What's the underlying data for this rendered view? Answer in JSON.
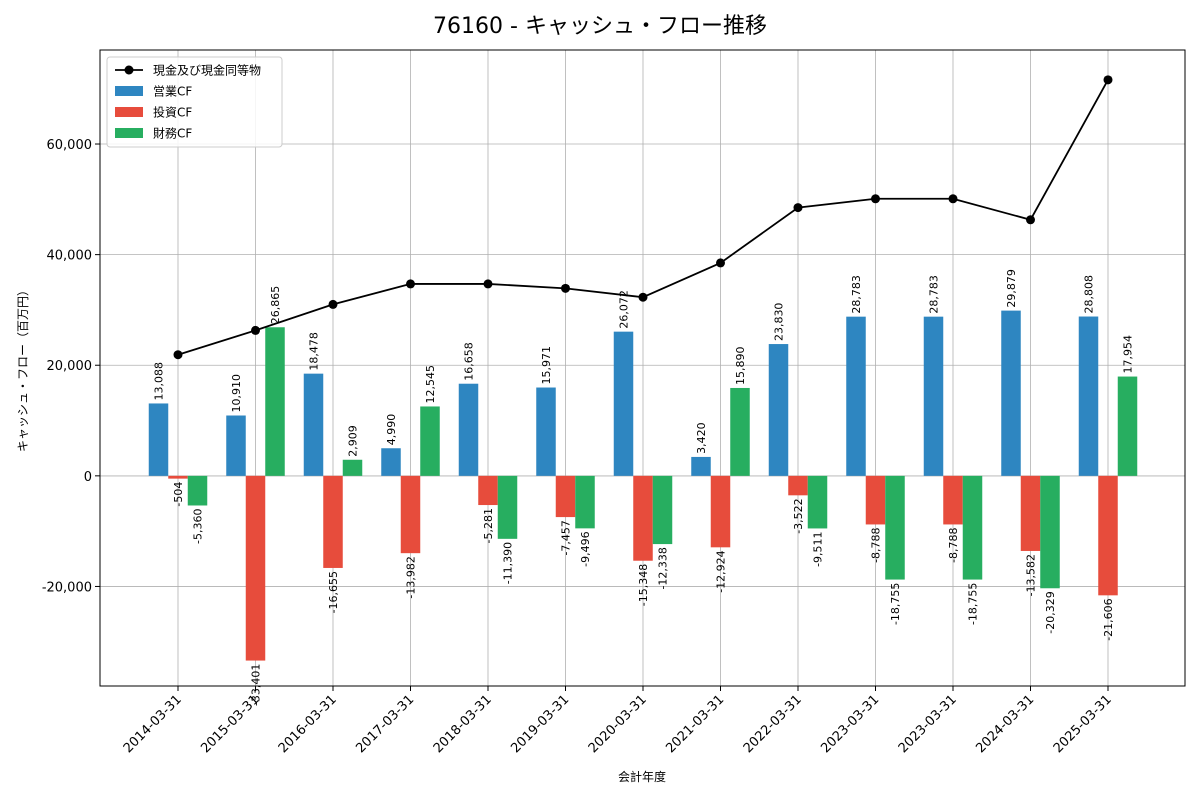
{
  "chart_data": {
    "type": "bar",
    "title": "76160 - キャッシュ・フロー推移",
    "xlabel": "会計年度",
    "ylabel": "キャッシュ・フロー（百万円）",
    "categories": [
      "2014-03-31",
      "2015-03-31",
      "2016-03-31",
      "2017-03-31",
      "2018-03-31",
      "2019-03-31",
      "2020-03-31",
      "2021-03-31",
      "2022-03-31",
      "2023-03-31",
      "2023-03-31",
      "2024-03-31",
      "2025-03-31"
    ],
    "ylim": [
      -38000,
      77000
    ],
    "yticks": [
      -20000,
      0,
      20000,
      40000,
      60000
    ],
    "ytick_labels": [
      "-20,000",
      "0",
      "20,000",
      "40,000",
      "60,000"
    ],
    "grid": true,
    "legend_position": "top-left",
    "series": [
      {
        "name": "営業CF",
        "kind": "bar",
        "color": "#2e86c1",
        "values": [
          13088,
          10910,
          18478,
          4990,
          16658,
          15971,
          26072,
          3420,
          23830,
          28783,
          28783,
          29879,
          28808
        ],
        "labels": [
          "13,088",
          "10,910",
          "18,478",
          "4,990",
          "16,658",
          "15,971",
          "26,072",
          "3,420",
          "23,830",
          "28,783",
          "28,783",
          "29,879",
          "28,808"
        ]
      },
      {
        "name": "投資CF",
        "kind": "bar",
        "color": "#e74c3c",
        "values": [
          -504,
          -33401,
          -16655,
          -13982,
          -5281,
          -7457,
          -15348,
          -12924,
          -3522,
          -8788,
          -8788,
          -13582,
          -21606
        ],
        "labels": [
          "-504",
          "-33,401",
          "-16,655",
          "-13,982",
          "-5,281",
          "-7,457",
          "-15,348",
          "-12,924",
          "-3,522",
          "-8,788",
          "-8,788",
          "-13,582",
          "-21,606"
        ]
      },
      {
        "name": "財務CF",
        "kind": "bar",
        "color": "#27ae60",
        "values": [
          -5360,
          26865,
          2909,
          12545,
          -11390,
          -9496,
          -12338,
          15890,
          -9511,
          -18755,
          -18755,
          -20329,
          17954
        ],
        "labels": [
          "-5,360",
          "26,865",
          "2,909",
          "12,545",
          "-11,390",
          "-9,496",
          "-12,338",
          "15,890",
          "-9,511",
          "-18,755",
          "-18,755",
          "-20,329",
          "17,954"
        ]
      },
      {
        "name": "現金及び現金同等物",
        "kind": "line",
        "color": "#000000",
        "values": [
          21900,
          26300,
          31000,
          34700,
          34700,
          33900,
          32300,
          38500,
          48500,
          50100,
          50100,
          46300,
          71600
        ]
      }
    ]
  }
}
